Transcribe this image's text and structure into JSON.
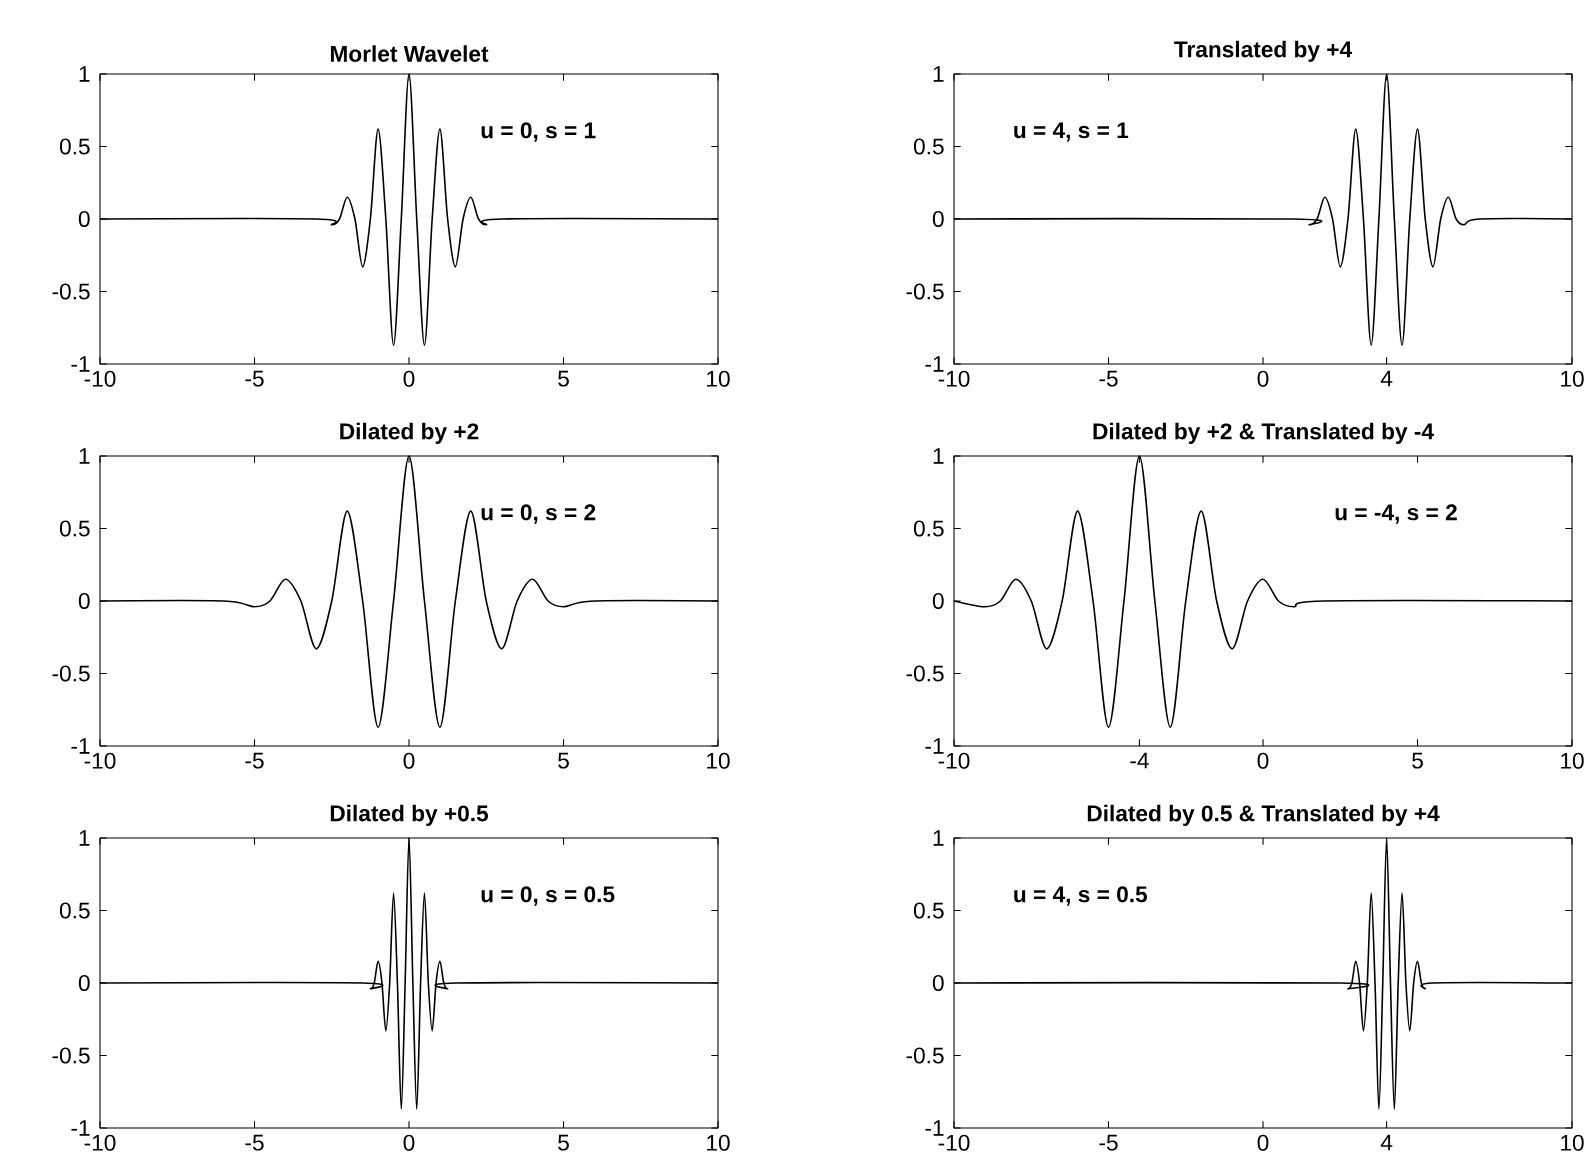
{
  "chart_data": [
    {
      "type": "line",
      "title": "Morlet Wavelet",
      "annotations": [
        "u = 0, s = 1"
      ],
      "color": "#000000",
      "xlim": [
        -10,
        10
      ],
      "ylim": [
        -1,
        1
      ],
      "xticks": [
        -10,
        -5,
        0,
        5,
        10
      ],
      "yticks": [
        -1,
        -0.5,
        0,
        0.5,
        1
      ],
      "x": [
        -10,
        -3,
        -2.5,
        -2.25,
        -2,
        -1.75,
        -1.5,
        -1.25,
        -1,
        -0.75,
        -0.5,
        -0.25,
        0,
        0.25,
        0.5,
        0.75,
        1,
        1.25,
        1.5,
        1.75,
        2,
        2.25,
        2.5,
        3,
        10
      ],
      "values": [
        0,
        0,
        -0.04,
        0,
        0.15,
        0,
        -0.33,
        0,
        0.62,
        0,
        -0.87,
        0,
        1,
        0,
        -0.87,
        0,
        0.62,
        0,
        -0.33,
        0,
        0.15,
        0,
        -0.04,
        0,
        0
      ]
    },
    {
      "type": "line",
      "title": "Translated by +4",
      "annotations": [
        "u = 4, s = 1"
      ],
      "color": "#000000",
      "xlim": [
        -10,
        10
      ],
      "ylim": [
        -1,
        1
      ],
      "xticks": [
        -10,
        -5,
        0,
        4,
        10
      ],
      "yticks": [
        -1,
        -0.5,
        0,
        0.5,
        1
      ],
      "x": [
        -10,
        1,
        1.5,
        1.75,
        2,
        2.25,
        2.5,
        2.75,
        3,
        3.25,
        3.5,
        3.75,
        4,
        4.25,
        4.5,
        4.75,
        5,
        5.25,
        5.5,
        5.75,
        6,
        6.25,
        6.5,
        7,
        10
      ],
      "values": [
        0,
        0,
        -0.04,
        0,
        0.15,
        0,
        -0.33,
        0,
        0.62,
        0,
        -0.87,
        0,
        1,
        0,
        -0.87,
        0,
        0.62,
        0,
        -0.33,
        0,
        0.15,
        0,
        -0.04,
        0,
        0
      ]
    },
    {
      "type": "line",
      "title": "Dilated by +2",
      "annotations": [
        "u = 0, s = 2"
      ],
      "color": "#000000",
      "xlim": [
        -10,
        10
      ],
      "ylim": [
        -1,
        1
      ],
      "xticks": [
        -10,
        -5,
        0,
        5,
        10
      ],
      "yticks": [
        -1,
        -0.5,
        0,
        0.5,
        1
      ],
      "x": [
        -10,
        -6,
        -5,
        -4.5,
        -4,
        -3.5,
        -3,
        -2.5,
        -2,
        -1.5,
        -1,
        -0.5,
        0,
        0.5,
        1,
        1.5,
        2,
        2.5,
        3,
        3.5,
        4,
        4.5,
        5,
        6,
        10
      ],
      "values": [
        0,
        0,
        -0.04,
        0,
        0.15,
        0,
        -0.33,
        0,
        0.62,
        0,
        -0.87,
        0,
        1,
        0,
        -0.87,
        0,
        0.62,
        0,
        -0.33,
        0,
        0.15,
        0,
        -0.04,
        0,
        0
      ]
    },
    {
      "type": "line",
      "title": "Dilated by +2 & Translated by -4",
      "annotations": [
        "u = -4, s = 2"
      ],
      "color": "#000000",
      "xlim": [
        -10,
        10
      ],
      "ylim": [
        -1,
        1
      ],
      "xticks": [
        -10,
        -4,
        0,
        5,
        10
      ],
      "yticks": [
        -1,
        -0.5,
        0,
        0.5,
        1
      ],
      "x": [
        -10,
        -9,
        -8.5,
        -8,
        -7.5,
        -7,
        -6.5,
        -6,
        -5.5,
        -5,
        -4.5,
        -4,
        -3.5,
        -3,
        -2.5,
        -2,
        -1.5,
        -1,
        -0.5,
        0,
        0.5,
        1,
        2,
        10
      ],
      "values": [
        0,
        -0.04,
        0,
        0.15,
        0,
        -0.33,
        0,
        0.62,
        0,
        -0.87,
        0,
        1,
        0,
        -0.87,
        0,
        0.62,
        0,
        -0.33,
        0,
        0.15,
        0,
        -0.04,
        0,
        0
      ]
    },
    {
      "type": "line",
      "title": "Dilated by +0.5",
      "annotations": [
        "u = 0, s = 0.5"
      ],
      "color": "#000000",
      "xlim": [
        -10,
        10
      ],
      "ylim": [
        -1,
        1
      ],
      "xticks": [
        -10,
        -5,
        0,
        5,
        10
      ],
      "yticks": [
        -1,
        -0.5,
        0,
        0.5,
        1
      ],
      "x": [
        -10,
        -1.5,
        -1.25,
        -1.125,
        -1,
        -0.875,
        -0.75,
        -0.625,
        -0.5,
        -0.375,
        -0.25,
        -0.125,
        0,
        0.125,
        0.25,
        0.375,
        0.5,
        0.625,
        0.75,
        0.875,
        1,
        1.125,
        1.25,
        1.5,
        10
      ],
      "values": [
        0,
        0,
        -0.04,
        0,
        0.15,
        0,
        -0.33,
        0,
        0.62,
        0,
        -0.87,
        0,
        1,
        0,
        -0.87,
        0,
        0.62,
        0,
        -0.33,
        0,
        0.15,
        0,
        -0.04,
        0,
        0
      ]
    },
    {
      "type": "line",
      "title": "Dilated by 0.5 & Translated by +4",
      "annotations": [
        "u = 4, s = 0.5"
      ],
      "color": "#000000",
      "xlim": [
        -10,
        10
      ],
      "ylim": [
        -1,
        1
      ],
      "xticks": [
        -10,
        -5,
        0,
        4,
        10
      ],
      "yticks": [
        -1,
        -0.5,
        0,
        0.5,
        1
      ],
      "x": [
        -10,
        2.5,
        2.75,
        2.875,
        3,
        3.125,
        3.25,
        3.375,
        3.5,
        3.625,
        3.75,
        3.875,
        4,
        4.125,
        4.25,
        4.375,
        4.5,
        4.625,
        4.75,
        4.875,
        5,
        5.125,
        5.25,
        5.5,
        10
      ],
      "values": [
        0,
        0,
        -0.04,
        0,
        0.15,
        0,
        -0.33,
        0,
        0.62,
        0,
        -0.87,
        0,
        1,
        0,
        -0.87,
        0,
        0.62,
        0,
        -0.33,
        0,
        0.15,
        0,
        -0.04,
        0,
        0
      ]
    }
  ]
}
